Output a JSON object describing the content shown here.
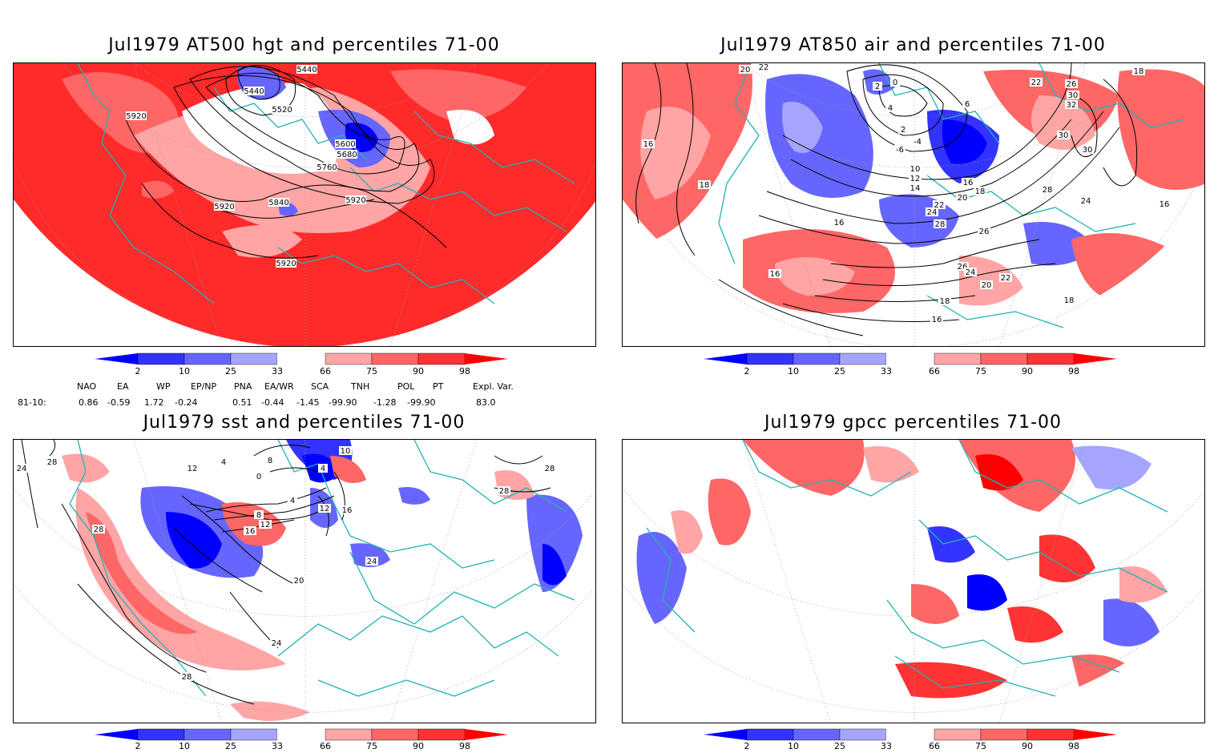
{
  "panels": [
    {
      "title": "Jul1979 AT500 hgt and percentiles 71-00",
      "contour_labels": [
        "5440",
        "5440",
        "5520",
        "5600",
        "5680",
        "5760",
        "5920",
        "5920",
        "5840",
        "5920",
        "5920"
      ]
    },
    {
      "title": "Jul1979 AT850 air and percentiles 71-00",
      "contour_labels": [
        "20",
        "22",
        "2",
        "0",
        "4",
        "6",
        "2",
        "-4",
        "-6",
        "16",
        "18",
        "16",
        "16",
        "18",
        "22",
        "26",
        "30",
        "32",
        "30",
        "30",
        "28",
        "24",
        "16",
        "10",
        "12",
        "14",
        "16",
        "18",
        "20",
        "22",
        "24",
        "28",
        "26",
        "26",
        "24",
        "22",
        "20",
        "18",
        "18",
        "16"
      ]
    },
    {
      "title": "Jul1979 sst and percentiles 71-00",
      "contour_labels": [
        "24",
        "28",
        "28",
        "28",
        "12",
        "4",
        "0",
        "8",
        "4",
        "10",
        "12",
        "16",
        "12",
        "8",
        "4",
        "16",
        "20",
        "24",
        "24",
        "28",
        "28"
      ]
    },
    {
      "title": "Jul1979 gpcc percentiles 71-00",
      "contour_labels": []
    }
  ],
  "colorbar": {
    "labels": [
      "2",
      "10",
      "25",
      "33",
      "66",
      "75",
      "90",
      "98"
    ],
    "colors": [
      "#0000ff",
      "#3333ff",
      "#6666ff",
      "#a5a5ff",
      "#ffffff",
      "#ffa5a5",
      "#ff6666",
      "#ff3333",
      "#ff0000"
    ]
  },
  "indices": {
    "headers": [
      "NAO",
      "EA",
      "WP",
      "EP/NP",
      "PNA",
      "EA/WR",
      "SCA",
      "TNH",
      "POL",
      "PT",
      "Expl. Var."
    ],
    "row_label": "81-10:",
    "values": [
      "0.86",
      "-0.59",
      "1.72",
      "-0.24",
      "0.51",
      "-0.44",
      "-1.45",
      "-99.90",
      "-1.28",
      "-99.90",
      "83.0"
    ]
  },
  "colors": {
    "coast": "#20b2b2",
    "grid": "#9a9a9a",
    "contour": "#000000"
  }
}
